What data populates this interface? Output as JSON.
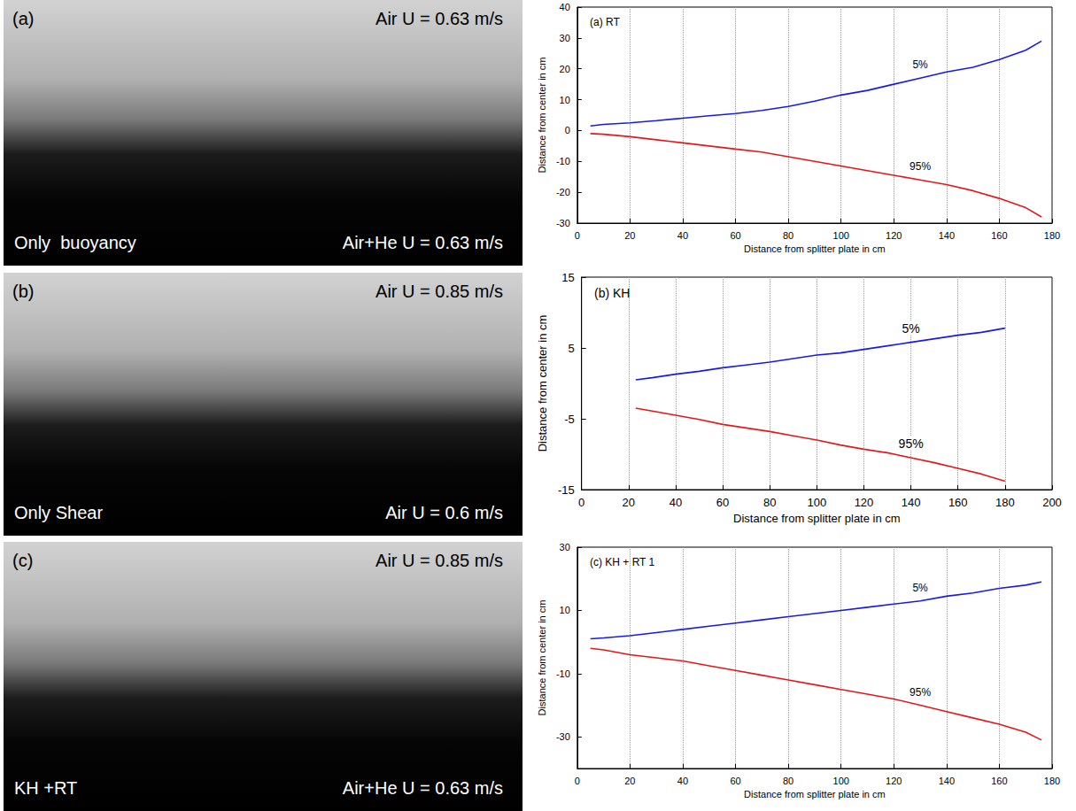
{
  "photos": [
    {
      "panel": "(a)",
      "top_right": "Air U = 0.63 m/s",
      "bottom_left": "Only  buoyancy",
      "bottom_right": "Air+He U = 0.63 m/s"
    },
    {
      "panel": "(b)",
      "top_right": "Air U = 0.85 m/s",
      "bottom_left": "Only Shear",
      "bottom_right": "Air U = 0.6 m/s"
    },
    {
      "panel": "(c)",
      "top_right": "Air U = 0.85 m/s",
      "bottom_left": "KH +RT",
      "bottom_right": "Air+He U = 0.63 m/s"
    }
  ],
  "chart_data": [
    {
      "type": "line",
      "title": "(a) RT",
      "x_label": "Distance from splitter plate in cm",
      "y_label": "Distance from center in cm",
      "xlim": [
        0,
        180
      ],
      "xticks": [
        0,
        20,
        40,
        60,
        80,
        100,
        120,
        140,
        160,
        180
      ],
      "ylim": [
        -30,
        40
      ],
      "yticks": [
        -30,
        -20,
        -10,
        0,
        10,
        20,
        30,
        40
      ],
      "grid": true,
      "series": [
        {
          "name": "5%",
          "color": "#1a1ae6",
          "x": [
            5,
            10,
            20,
            30,
            40,
            50,
            60,
            70,
            80,
            90,
            100,
            110,
            120,
            130,
            140,
            150,
            160,
            170,
            176
          ],
          "values": [
            1.5,
            2,
            2.5,
            3.2,
            4,
            4.8,
            5.5,
            6.5,
            7.8,
            9.5,
            11.5,
            13,
            15,
            17,
            19,
            20.5,
            23,
            26,
            29
          ]
        },
        {
          "name": "95%",
          "color": "#e01a1a",
          "x": [
            5,
            10,
            20,
            30,
            40,
            50,
            60,
            70,
            80,
            90,
            100,
            110,
            120,
            130,
            140,
            150,
            160,
            170,
            176
          ],
          "values": [
            -1,
            -1.2,
            -2,
            -3,
            -4,
            -5,
            -6,
            -7,
            -8.5,
            -10,
            -11.5,
            -13,
            -14.5,
            -16,
            -17.5,
            -19.5,
            -22,
            -25,
            -28
          ]
        }
      ]
    },
    {
      "type": "line",
      "title": "(b) KH",
      "x_label": "Distance from splitter plate in cm",
      "y_label": "Distance from center in cm",
      "xlim": [
        0,
        200
      ],
      "xticks": [
        0,
        20,
        40,
        60,
        80,
        100,
        120,
        140,
        160,
        180,
        200
      ],
      "ylim": [
        -15,
        15
      ],
      "yticks": [
        -15,
        -5,
        5,
        15
      ],
      "grid": true,
      "series": [
        {
          "name": "5%",
          "color": "#1a1ae6",
          "x": [
            23,
            30,
            40,
            50,
            60,
            70,
            80,
            90,
            100,
            110,
            120,
            130,
            140,
            150,
            160,
            170,
            180
          ],
          "values": [
            0.5,
            0.8,
            1.3,
            1.7,
            2.2,
            2.6,
            3,
            3.5,
            4,
            4.3,
            4.8,
            5.3,
            5.8,
            6.3,
            6.8,
            7.2,
            7.8
          ]
        },
        {
          "name": "95%",
          "color": "#e01a1a",
          "x": [
            23,
            30,
            40,
            50,
            60,
            70,
            80,
            90,
            100,
            110,
            120,
            130,
            140,
            150,
            160,
            170,
            180
          ],
          "values": [
            -3.5,
            -3.9,
            -4.5,
            -5.1,
            -5.8,
            -6.3,
            -6.8,
            -7.4,
            -8,
            -8.7,
            -9.3,
            -9.8,
            -10.5,
            -11.2,
            -12,
            -12.8,
            -13.8
          ]
        }
      ]
    },
    {
      "type": "line",
      "title": "(c) KH + RT 1",
      "x_label": "Distance from splitter plate in cm",
      "y_label": "Distance from center in cm",
      "xlim": [
        0,
        180
      ],
      "xticks": [
        0,
        20,
        40,
        60,
        80,
        100,
        120,
        140,
        160,
        180
      ],
      "ylim": [
        -40,
        30
      ],
      "yticks": [
        -30,
        -10,
        10,
        30
      ],
      "grid": true,
      "series": [
        {
          "name": "5%",
          "color": "#1a1ae6",
          "x": [
            5,
            10,
            20,
            30,
            40,
            50,
            60,
            70,
            80,
            90,
            100,
            110,
            120,
            130,
            140,
            150,
            160,
            170,
            176
          ],
          "values": [
            1,
            1.3,
            2,
            3,
            4,
            5,
            6,
            7,
            8,
            9,
            10,
            11,
            12,
            13,
            14.5,
            15.5,
            17,
            18,
            19
          ]
        },
        {
          "name": "95%",
          "color": "#e01a1a",
          "x": [
            5,
            10,
            20,
            30,
            40,
            50,
            60,
            70,
            80,
            90,
            100,
            110,
            120,
            130,
            140,
            150,
            160,
            170,
            176
          ],
          "values": [
            -2,
            -2.5,
            -4,
            -5,
            -6,
            -7.5,
            -9,
            -10.5,
            -12,
            -13.5,
            -15,
            -16.5,
            -18,
            -20,
            -22,
            -24,
            -26,
            -28.5,
            -31
          ]
        }
      ]
    }
  ]
}
